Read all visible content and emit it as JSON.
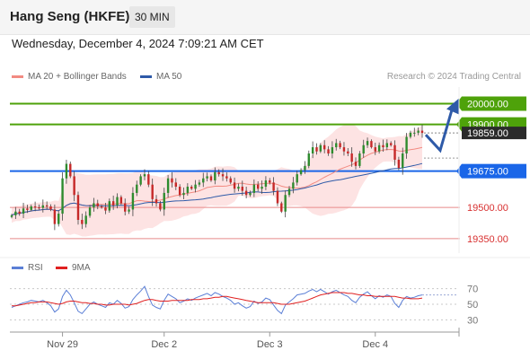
{
  "header": {
    "title": "Hang Seng (HKFE)",
    "interval": "30 MIN"
  },
  "date_text": "Wednesday, December 4, 2024 7:09:21 AM CET",
  "credit": "Research © 2024 Trading Central",
  "legend": {
    "main": [
      {
        "label": "MA 20 + Bollinger Bands",
        "color": "#f28b82"
      },
      {
        "label": "MA 50",
        "color": "#2e5aa8"
      }
    ],
    "rsi": [
      {
        "label": "RSI",
        "color": "#5b7fd6"
      },
      {
        "label": "9MA",
        "color": "#e02020"
      }
    ]
  },
  "chart_data": [
    {
      "type": "candlestick",
      "ylim": [
        19280,
        20080
      ],
      "x_ticks": [
        "Nov 29",
        "Dec 2",
        "Dec 3",
        "Dec 4"
      ],
      "colors": {
        "up": "#2e8b2e",
        "down": "#c62828",
        "ma20": "#f28b82",
        "ma50": "#2e5aa8",
        "bands_fill": "#fde3e3"
      },
      "levels": [
        {
          "value": 20000,
          "label": "20000.00",
          "color": "#4ea20a",
          "style": "line"
        },
        {
          "value": 19900,
          "label": "19900.00",
          "color": "#4ea20a",
          "style": "line"
        },
        {
          "value": 19675,
          "label": "19675.00",
          "color": "#1a66e8",
          "style": "line"
        },
        {
          "value": 19500,
          "label": "19500.00",
          "color": "#e88a8a",
          "style": "text"
        },
        {
          "value": 19350,
          "label": "19350.00",
          "color": "#e88a8a",
          "style": "text"
        }
      ],
      "current_price": {
        "value": 19859,
        "label": "19859.00",
        "color": "#2b2b2b"
      },
      "forecast": [
        19850,
        19775,
        20000
      ],
      "close": [
        19462,
        19480,
        19470,
        19495,
        19488,
        19505,
        19500,
        19498,
        19510,
        19505,
        19490,
        19420,
        19470,
        19640,
        19710,
        19650,
        19560,
        19440,
        19420,
        19460,
        19500,
        19520,
        19505,
        19500,
        19485,
        19530,
        19510,
        19550,
        19520,
        19480,
        19490,
        19570,
        19610,
        19650,
        19660,
        19610,
        19540,
        19520,
        19490,
        19570,
        19640,
        19620,
        19600,
        19560,
        19570,
        19600,
        19590,
        19610,
        19620,
        19640,
        19650,
        19630,
        19670,
        19660,
        19650,
        19640,
        19620,
        19590,
        19600,
        19580,
        19560,
        19570,
        19610,
        19590,
        19600,
        19630,
        19620,
        19580,
        19520,
        19480,
        19560,
        19590,
        19620,
        19660,
        19680,
        19700,
        19760,
        19790,
        19770,
        19800,
        19780,
        19760,
        19790,
        19810,
        19790,
        19770,
        19760,
        19720,
        19700,
        19760,
        19800,
        19820,
        19790,
        19770,
        19800,
        19790,
        19810,
        19800,
        19730,
        19690,
        19760,
        19840,
        19860,
        19860,
        19870,
        19859
      ]
    },
    {
      "type": "line",
      "title": "RSI",
      "ylim": [
        20,
        80
      ],
      "y_ticks": [
        70,
        50,
        30
      ],
      "series": [
        {
          "name": "RSI",
          "color": "#5b7fd6",
          "values": [
            46,
            48,
            50,
            52,
            53,
            55,
            54,
            53,
            55,
            52,
            48,
            40,
            44,
            60,
            68,
            62,
            52,
            41,
            38,
            44,
            50,
            53,
            50,
            48,
            46,
            52,
            50,
            55,
            51,
            45,
            47,
            56,
            62,
            67,
            73,
            60,
            49,
            46,
            44,
            55,
            63,
            60,
            57,
            52,
            54,
            57,
            55,
            58,
            60,
            62,
            64,
            61,
            65,
            63,
            60,
            58,
            55,
            50,
            52,
            48,
            45,
            47,
            54,
            51,
            53,
            58,
            56,
            49,
            42,
            38,
            49,
            53,
            57,
            62,
            63,
            64,
            67,
            69,
            66,
            69,
            66,
            63,
            66,
            68,
            65,
            62,
            60,
            55,
            52,
            59,
            63,
            66,
            61,
            57,
            61,
            59,
            62,
            60,
            51,
            46,
            55,
            60,
            58,
            59,
            61,
            62
          ]
        },
        {
          "name": "9MA",
          "color": "#e02020",
          "values": [
            48,
            48,
            49,
            50,
            51,
            52,
            52,
            53,
            53,
            53,
            52,
            51,
            50,
            51,
            53,
            54,
            54,
            53,
            52,
            52,
            51,
            51,
            50,
            50,
            49,
            49,
            50,
            50,
            50,
            50,
            49,
            50,
            51,
            53,
            55,
            56,
            56,
            55,
            54,
            54,
            54,
            55,
            55,
            55,
            55,
            55,
            56,
            56,
            56,
            57,
            57,
            58,
            59,
            59,
            60,
            60,
            59,
            58,
            57,
            56,
            55,
            54,
            53,
            52,
            52,
            52,
            52,
            52,
            51,
            50,
            50,
            50,
            51,
            52,
            53,
            54,
            56,
            58,
            60,
            62,
            63,
            64,
            65,
            65,
            65,
            65,
            64,
            64,
            63,
            62,
            62,
            61,
            61,
            60,
            60,
            60,
            60,
            60,
            60,
            59,
            58,
            58,
            57,
            57,
            57,
            58
          ]
        }
      ]
    }
  ]
}
